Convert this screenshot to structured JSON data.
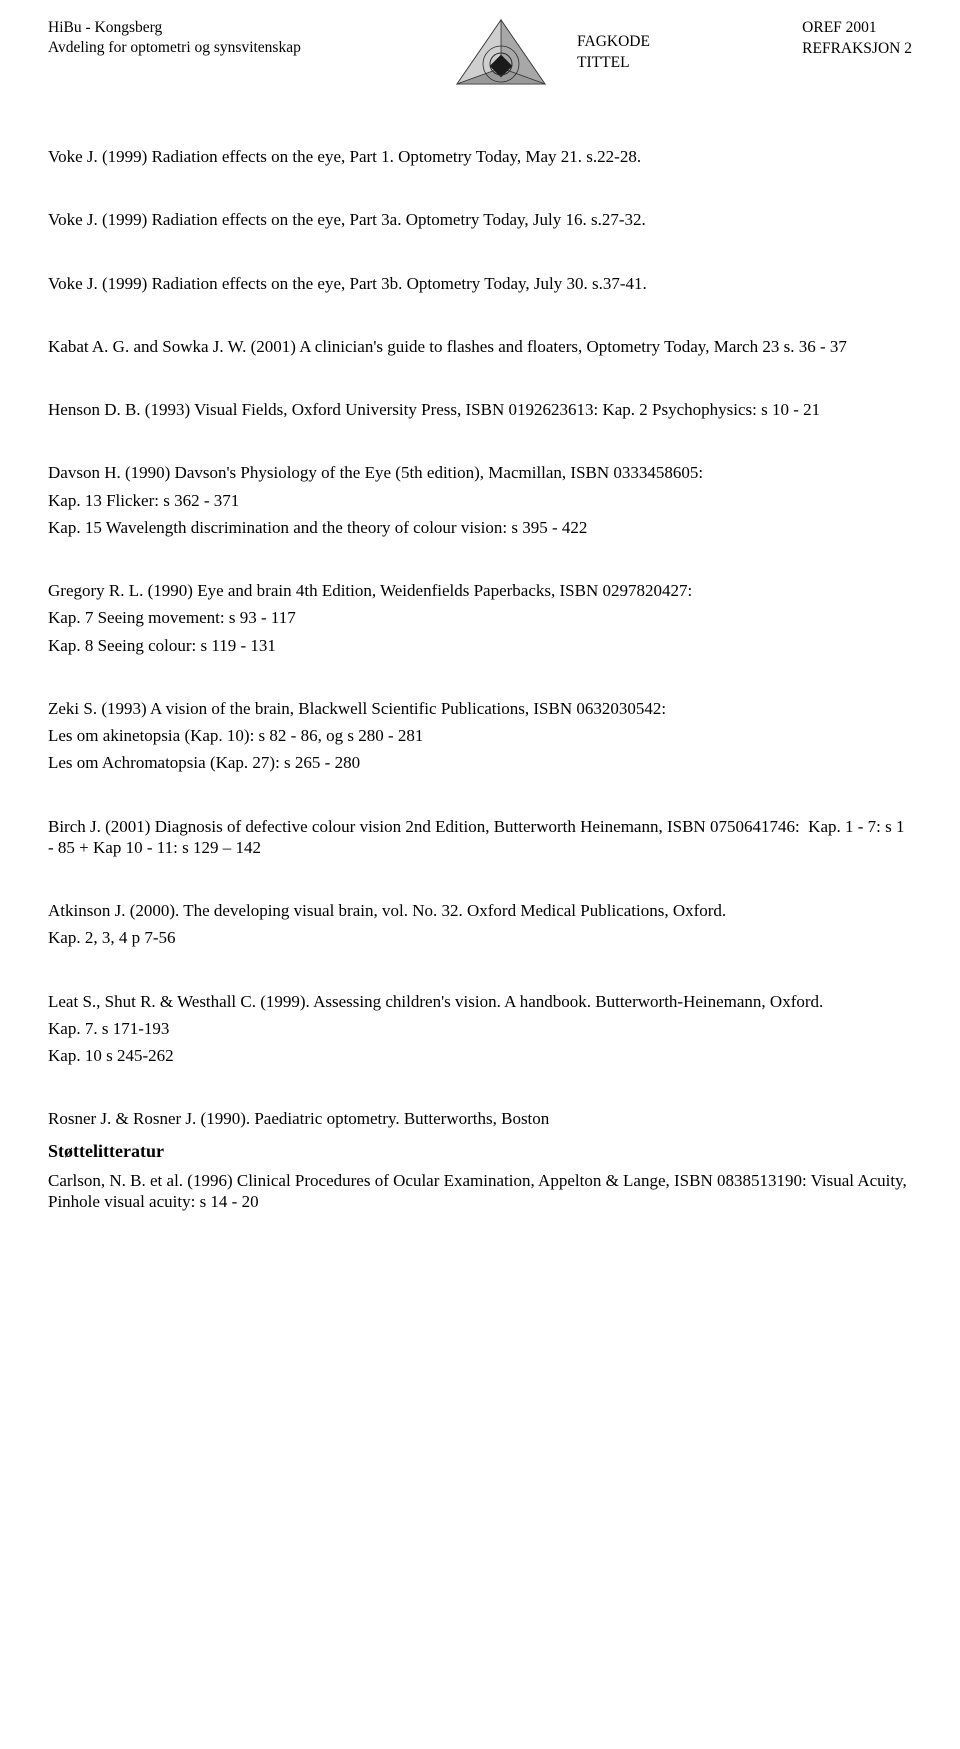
{
  "header": {
    "left_line1": "HiBu - Kongsberg",
    "left_line2": "Avdeling for optometri og synsvitenskap",
    "meta_line1": "FAGKODE",
    "meta_line2": "TITTEL",
    "right_line1": "OREF 2001",
    "right_line2": "REFRAKSJON 2",
    "logo": {
      "outer_fill": "#bdbdbd",
      "outer_stroke": "#3a3a3a",
      "inner_fill": "#1a1a1a",
      "circles_stroke": "#2a2a2a"
    }
  },
  "entries": [
    {
      "ref": "Voke J. (1999) Radiation effects on the eye, Part 1. Optometry Today, May 21. s.22-28.",
      "subs": []
    },
    {
      "ref": "Voke J. (1999) Radiation effects on the eye, Part 3a. Optometry Today, July 16. s.27-32.",
      "subs": []
    },
    {
      "ref": "Voke J. (1999) Radiation effects on the eye, Part 3b. Optometry Today, July 30. s.37-41.",
      "subs": []
    },
    {
      "ref": "Kabat A. G. and Sowka J. W. (2001) A clinician's guide to flashes and floaters, Optometry Today, March 23 s. 36 - 37",
      "subs": []
    },
    {
      "ref": "Henson D. B. (1993) Visual Fields, Oxford University Press, ISBN 0192623613: Kap. 2 Psychophysics: s 10 - 21",
      "subs": []
    },
    {
      "ref": "Davson H. (1990) Davson's Physiology of the Eye (5th edition), Macmillan, ISBN 0333458605:",
      "subs": [
        "Kap. 13 Flicker: s 362 - 371",
        "Kap. 15 Wavelength discrimination and the theory of colour vision: s 395 - 422"
      ]
    },
    {
      "ref": "Gregory R. L. (1990) Eye and brain 4th Edition, Weidenfields Paperbacks, ISBN 0297820427:",
      "subs": [
        "Kap. 7 Seeing movement: s 93 - 117",
        "Kap. 8 Seeing colour: s 119 - 131"
      ]
    },
    {
      "ref": "Zeki S. (1993) A vision of the brain, Blackwell Scientific Publications, ISBN 0632030542:",
      "subs": [
        "Les om akinetopsia (Kap. 10): s 82 - 86, og s 280 - 281",
        "Les om Achromatopsia (Kap. 27): s 265 - 280"
      ]
    },
    {
      "ref": "Birch J. (2001) Diagnosis of defective colour vision 2nd Edition, Butterworth Heinemann, ISBN 0750641746:  Kap. 1 - 7: s 1 - 85 + Kap 10 - 11: s 129 – 142",
      "subs": []
    },
    {
      "ref": "Atkinson J. (2000). The developing visual brain, vol. No. 32. Oxford Medical Publications, Oxford.",
      "subs": [
        "Kap. 2, 3, 4  p 7-56"
      ]
    },
    {
      "ref": "Leat S., Shut R. & Westhall C. (1999). Assessing children's vision. A handbook. Butterworth-Heinemann, Oxford.",
      "subs": [
        "Kap. 7. s 171-193",
        "Kap. 10 s 245-262"
      ]
    },
    {
      "ref": "Rosner J. & Rosner J. (1990). Paediatric optometry. Butterworths, Boston",
      "subs": []
    }
  ],
  "support_heading": "Støttelitteratur",
  "support_entry": "Carlson, N. B. et al. (1996) Clinical Procedures of Ocular Examination, Appelton & Lange, ISBN 0838513190: Visual Acuity, Pinhole visual acuity: s 14 - 20"
}
